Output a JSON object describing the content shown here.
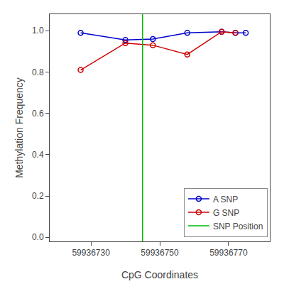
{
  "chart_data": {
    "type": "line",
    "title": "",
    "xlabel": "CpG Coordinates",
    "ylabel": "Methylation Frequency",
    "series": [
      {
        "name": "A SNP",
        "type": "line",
        "color": "#0000CC",
        "marker": "circle-open",
        "x": [
          59936727,
          59936740,
          59936748,
          59936758,
          59936768,
          59936772,
          59936775
        ],
        "values": [
          0.99,
          0.955,
          0.96,
          0.99,
          0.995,
          0.99,
          0.99
        ]
      },
      {
        "name": "G SNP",
        "type": "line",
        "color": "#CC0000",
        "marker": "circle-open",
        "x": [
          59936727,
          59936740,
          59936748,
          59936758,
          59936768,
          59936772
        ],
        "values": [
          0.81,
          0.94,
          0.93,
          0.885,
          0.995,
          0.99
        ]
      },
      {
        "name": "SNP Position",
        "type": "vline",
        "color": "#00BB00",
        "x": [
          59936745
        ]
      }
    ],
    "xlim": [
      59936718,
      59936782
    ],
    "ylim": [
      -0.02,
      1.08
    ],
    "xticks": [
      59936730,
      59936750,
      59936770
    ],
    "yticks": [
      {
        "value": 0.0,
        "label": "0.0"
      },
      0.2,
      0.4,
      0.6,
      0.8,
      {
        "value": 1.0,
        "label": "1.0"
      }
    ],
    "grid": false,
    "legend": "lower right"
  }
}
